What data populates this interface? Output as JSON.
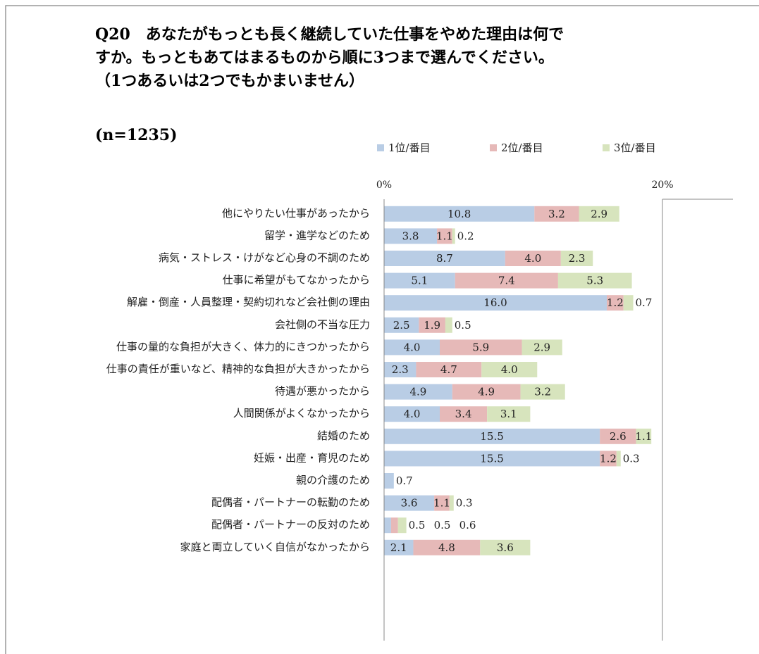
{
  "chart_data": {
    "type": "stacked_bar_horizontal",
    "title": [
      "Q20　あなたがもっとも長く継続していた仕事をやめた理由は何で",
      "すか。もっともあてはまるものから順に3つまで選んでください。",
      "（1つあるいは2つでもかまいません）"
    ],
    "subtitle": "(n=1235)",
    "categories": [
      "他にやりたい仕事があったから",
      "留学・進学などのため",
      "病気・ストレス・けがなど心身の不調のため",
      "仕事に希望がもてなかったから",
      "解雇・倒産・人員整理・契約切れなど会社側の理由",
      "会社側の不当な圧力",
      "仕事の量的な負担が大きく、体力的にきつかったから",
      "仕事の責任が重いなど、精神的な負担が大きかったから",
      "待遇が悪かったから",
      "人間関係がよくなかったから",
      "結婚のため",
      "妊娠・出産・育児のため",
      "親の介護のため",
      "配偶者・パートナーの転勤のため",
      "配偶者・パートナーの反対のため",
      "家庭と両立していく自信がなかったから"
    ],
    "series": [
      {
        "name": "1位/番目",
        "color": "#b9cde5",
        "values": [
          10.8,
          3.8,
          8.7,
          5.1,
          16.0,
          2.5,
          4.0,
          2.3,
          4.9,
          4.0,
          15.5,
          15.5,
          0.7,
          3.6,
          0.5,
          2.1
        ],
        "value_labels": [
          "10.8",
          "3.8",
          "8.7",
          "5.1",
          "16.0",
          "2.5",
          "4.0",
          "2.3",
          "4.9",
          "4.0",
          "15.5",
          "15.5",
          "0.7",
          "3.6",
          "0.5",
          "2.1"
        ]
      },
      {
        "name": "2位/番目",
        "color": "#e6b9b8",
        "values": [
          3.2,
          1.1,
          4.0,
          7.4,
          1.2,
          1.9,
          5.9,
          4.7,
          4.9,
          3.4,
          2.6,
          1.2,
          null,
          1.1,
          0.5,
          4.8
        ],
        "value_labels": [
          "3.2",
          "1.1",
          "4.0",
          "7.4",
          "1.2",
          "1.9",
          "5.9",
          "4.7",
          "4.9",
          "3.4",
          "2.6",
          "1.2",
          null,
          "1.1",
          "0.5",
          "4.8"
        ]
      },
      {
        "name": "3位/番目",
        "color": "#d7e4bd",
        "values": [
          2.9,
          0.2,
          2.3,
          5.3,
          0.7,
          0.5,
          2.9,
          4.0,
          3.2,
          3.1,
          1.1,
          0.3,
          null,
          0.3,
          0.6,
          3.6
        ],
        "value_labels": [
          "2.9",
          "0.2",
          "2.3",
          "5.3",
          "0.7",
          "0.5",
          "2.9",
          "4.0",
          "3.2",
          "3.1",
          "1.1",
          "0.3",
          null,
          "0.3",
          "0.6",
          "3.6"
        ]
      }
    ],
    "xlim": [
      0,
      20
    ],
    "xticks": [
      {
        "value": 0,
        "label": "0%"
      },
      {
        "value": 20,
        "label": "20%"
      }
    ],
    "legend": "top"
  }
}
